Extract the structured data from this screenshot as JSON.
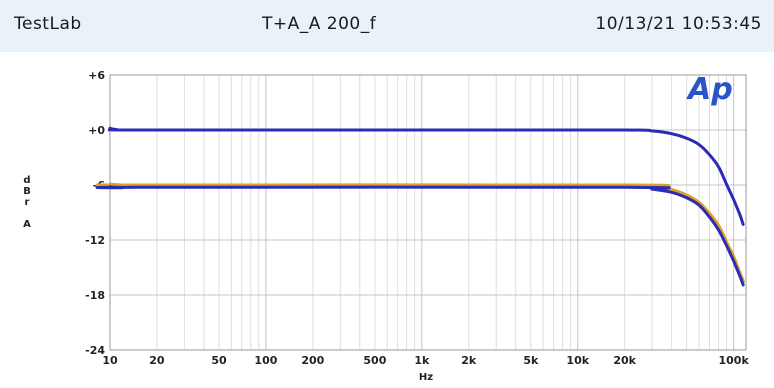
{
  "header": {
    "left": "TestLab",
    "center": "T+A_A 200_f",
    "right": "10/13/21 10:53:45"
  },
  "logo_text": "Ap",
  "chart_data": {
    "type": "line",
    "x_scale": "log",
    "xlim": [
      10,
      120000
    ],
    "ylim": [
      -24,
      6
    ],
    "y_ticks": [
      6,
      0,
      -6,
      -12,
      -18,
      -24
    ],
    "y_tick_labels": [
      "+6",
      "+0",
      "-6",
      "-12",
      "-18",
      "-24"
    ],
    "x_ticks": [
      10,
      20,
      50,
      100,
      200,
      500,
      1000,
      2000,
      5000,
      10000,
      20000,
      100000
    ],
    "x_tick_labels": [
      "10",
      "20",
      "50",
      "100",
      "200",
      "500",
      "1k",
      "2k",
      "5k",
      "10k",
      "20k",
      "100k"
    ],
    "xlabel": "Hz",
    "ylabel": "d\nB\nr\n\nA",
    "grid": true,
    "series": [
      {
        "color": "#2b2bb8",
        "points": [
          [
            10,
            0.2
          ],
          [
            11,
            0.05
          ],
          [
            15,
            0
          ],
          [
            1000,
            0
          ],
          [
            20000,
            0
          ],
          [
            30000,
            -0.1
          ],
          [
            40000,
            -0.4
          ],
          [
            50000,
            -0.9
          ],
          [
            60000,
            -1.6
          ],
          [
            70000,
            -2.7
          ],
          [
            80000,
            -4.0
          ],
          [
            90000,
            -5.9
          ],
          [
            100000,
            -7.6
          ],
          [
            110000,
            -9.3
          ],
          [
            115000,
            -10.3
          ]
        ]
      },
      {
        "color": "#2fa04a",
        "points": [
          [
            10,
            -6.0
          ],
          [
            12,
            -6.15
          ],
          [
            15,
            -6.1
          ],
          [
            20000,
            -6.1
          ],
          [
            30000,
            -6.3
          ],
          [
            40000,
            -6.6
          ],
          [
            50000,
            -7.2
          ],
          [
            60000,
            -8.0
          ],
          [
            70000,
            -9.3
          ],
          [
            80000,
            -10.6
          ],
          [
            90000,
            -12.4
          ],
          [
            100000,
            -14.0
          ],
          [
            110000,
            -15.8
          ],
          [
            115000,
            -16.6
          ]
        ]
      },
      {
        "color": "#e0a020",
        "points": [
          [
            10,
            -5.9
          ],
          [
            12,
            -6.0
          ],
          [
            15,
            -6.0
          ],
          [
            20000,
            -6.0
          ],
          [
            30000,
            -6.2
          ],
          [
            40000,
            -6.5
          ],
          [
            50000,
            -7.1
          ],
          [
            60000,
            -7.9
          ],
          [
            70000,
            -9.1
          ],
          [
            80000,
            -10.4
          ],
          [
            90000,
            -12.2
          ],
          [
            100000,
            -13.8
          ],
          [
            110000,
            -15.6
          ],
          [
            115000,
            -16.4
          ]
        ]
      },
      {
        "color": "#2b2bb8",
        "points": [
          [
            10,
            -6.2
          ],
          [
            12,
            -6.3
          ],
          [
            15,
            -6.25
          ],
          [
            20000,
            -6.25
          ],
          [
            30000,
            -6.45
          ],
          [
            40000,
            -6.8
          ],
          [
            50000,
            -7.4
          ],
          [
            60000,
            -8.2
          ],
          [
            70000,
            -9.5
          ],
          [
            80000,
            -10.9
          ],
          [
            90000,
            -12.6
          ],
          [
            100000,
            -14.3
          ],
          [
            110000,
            -16.0
          ],
          [
            115000,
            -16.9
          ]
        ]
      }
    ]
  }
}
